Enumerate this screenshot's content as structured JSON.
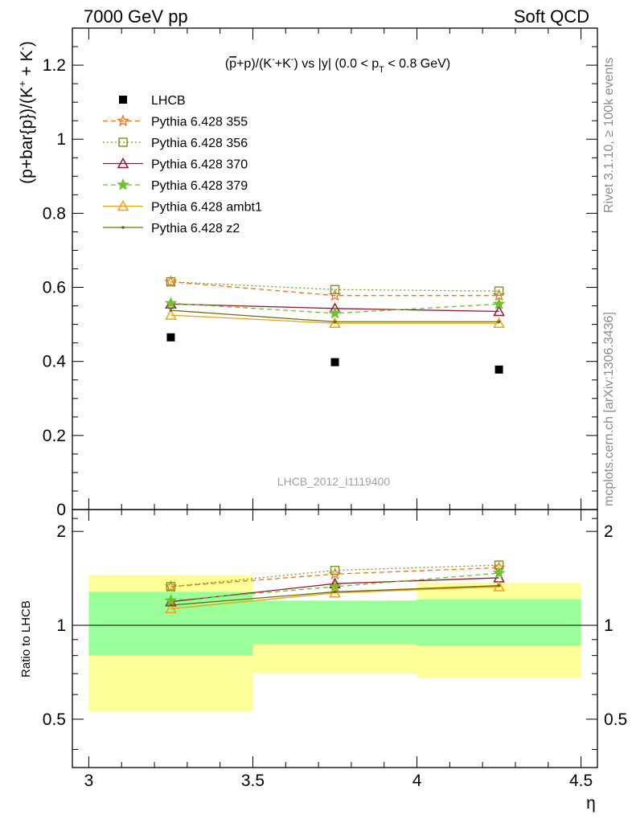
{
  "header": {
    "left": "7000 GeV pp",
    "right": "Soft QCD"
  },
  "side_labels": {
    "rivet": "Rivet 3.1.10, ≥ 100k events",
    "mcplots": "mcplots.cern.ch [arXiv:1306.3436]"
  },
  "chart_data": [
    {
      "type": "scatter",
      "title": "(p̅+p)/(K⁻+K⁻) vs |y| (0.0 < p_T < 0.8 GeV)",
      "ylabel": "(p+bar{p})/(K⁺ + K⁻)",
      "xlabel": "η",
      "xlim": [
        2.95,
        4.55
      ],
      "ylim": [
        0,
        1.3
      ],
      "yticks": [
        "0",
        "0.2",
        "0.4",
        "0.6",
        "0.8",
        "1",
        "1.2"
      ],
      "watermark": "LHCB_2012_I1119400",
      "x": [
        3.25,
        3.75,
        4.25
      ],
      "legend_position": "top-left",
      "series": [
        {
          "name": "LHCB",
          "color": "#000000",
          "marker": "square",
          "line": "none",
          "values": [
            0.465,
            0.398,
            0.378
          ]
        },
        {
          "name": "Pythia 6.428 355",
          "color": "#ff6f12",
          "marker": "star-open",
          "line": "dashed",
          "values": [
            0.615,
            0.578,
            0.578
          ]
        },
        {
          "name": "Pythia 6.428 356",
          "color": "#7a9e1b",
          "marker": "square-open",
          "line": "dotted",
          "values": [
            0.615,
            0.594,
            0.59
          ]
        },
        {
          "name": "Pythia 6.428 370",
          "color": "#a01030",
          "marker": "triangle-open",
          "line": "solid",
          "values": [
            0.555,
            0.543,
            0.535
          ]
        },
        {
          "name": "Pythia 6.428 379",
          "color": "#6cc22c",
          "marker": "star",
          "line": "dashed",
          "values": [
            0.557,
            0.53,
            0.555
          ]
        },
        {
          "name": "Pythia 6.428 ambt1",
          "color": "#f0a010",
          "marker": "triangle-open",
          "line": "solid",
          "values": [
            0.525,
            0.503,
            0.503
          ]
        },
        {
          "name": "Pythia 6.428 z2",
          "color": "#6b6b10",
          "marker": "dot",
          "line": "solid",
          "values": [
            0.538,
            0.507,
            0.507
          ]
        }
      ]
    },
    {
      "type": "scatter",
      "ylabel": "Ratio to LHCB",
      "xlabel": "η",
      "xlim": [
        2.95,
        4.55
      ],
      "ylim": [
        0.35,
        2.35
      ],
      "yticks": [
        "0.5",
        "1",
        "2"
      ],
      "xticks": [
        "3",
        "3.5",
        "4",
        "4.5"
      ],
      "x": [
        3.25,
        3.75,
        4.25
      ],
      "bands": [
        {
          "x_range": [
            3.0,
            3.5
          ],
          "stat": [
            0.8,
            1.28
          ],
          "total": [
            0.53,
            1.45
          ]
        },
        {
          "x_range": [
            3.5,
            4.0
          ],
          "stat": [
            0.87,
            1.2
          ],
          "total": [
            0.7,
            1.2
          ]
        },
        {
          "x_range": [
            4.0,
            4.5
          ],
          "stat": [
            0.86,
            1.21
          ],
          "total": [
            0.68,
            1.37
          ]
        }
      ],
      "band_colors": {
        "stat": "#99ff99",
        "total": "#ffff99"
      },
      "series": [
        {
          "name": "Pythia 6.428 355",
          "values": [
            1.33,
            1.46,
            1.53
          ]
        },
        {
          "name": "Pythia 6.428 356",
          "values": [
            1.33,
            1.5,
            1.56
          ]
        },
        {
          "name": "Pythia 6.428 370",
          "values": [
            1.19,
            1.36,
            1.42
          ]
        },
        {
          "name": "Pythia 6.428 379",
          "values": [
            1.2,
            1.33,
            1.47
          ]
        },
        {
          "name": "Pythia 6.428 ambt1",
          "values": [
            1.13,
            1.27,
            1.33
          ]
        },
        {
          "name": "Pythia 6.428 z2",
          "values": [
            1.16,
            1.28,
            1.34
          ]
        }
      ]
    }
  ]
}
